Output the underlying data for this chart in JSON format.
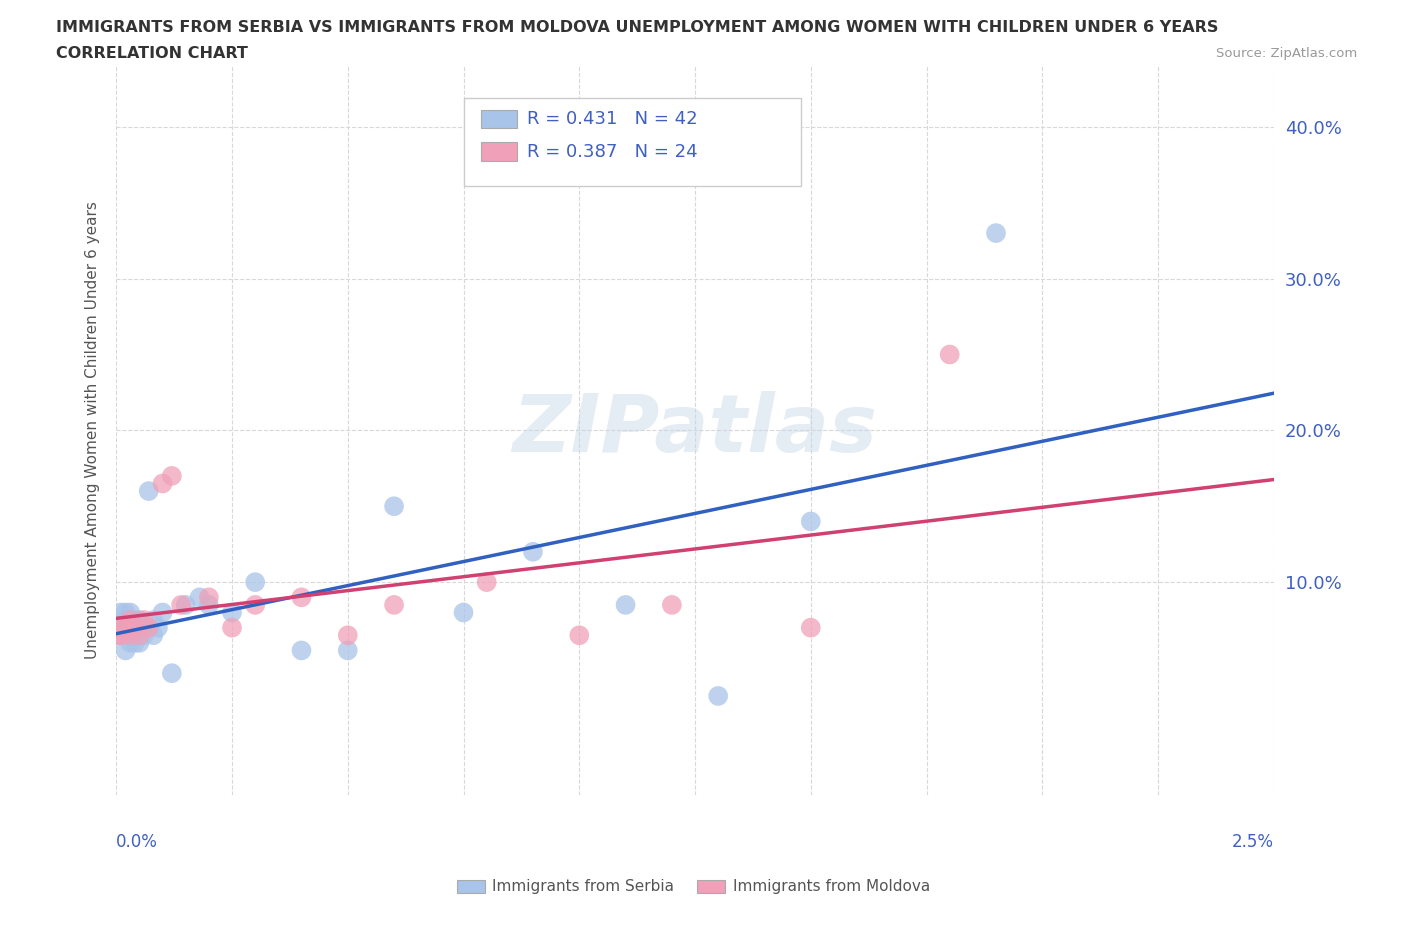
{
  "title": "IMMIGRANTS FROM SERBIA VS IMMIGRANTS FROM MOLDOVA UNEMPLOYMENT AMONG WOMEN WITH CHILDREN UNDER 6 YEARS",
  "subtitle": "CORRELATION CHART",
  "source": "Source: ZipAtlas.com",
  "ylabel": "Unemployment Among Women with Children Under 6 years",
  "serbia_R": 0.431,
  "serbia_N": 42,
  "moldova_R": 0.387,
  "moldova_N": 24,
  "serbia_color": "#a8c4e8",
  "moldova_color": "#f0a0b8",
  "serbia_line_color": "#3060c0",
  "moldova_line_color": "#d04070",
  "right_yticklabels": [
    "10.0%",
    "20.0%",
    "30.0%",
    "40.0%"
  ],
  "right_yticks": [
    0.1,
    0.2,
    0.3,
    0.4
  ],
  "watermark": "ZIPatlas",
  "serbia_x": [
    0.0001,
    0.0001,
    0.0001,
    0.0002,
    0.0002,
    0.0002,
    0.0002,
    0.0003,
    0.0003,
    0.0003,
    0.0003,
    0.0003,
    0.0004,
    0.0004,
    0.0004,
    0.0004,
    0.0005,
    0.0005,
    0.0005,
    0.0005,
    0.0006,
    0.0006,
    0.0007,
    0.0008,
    0.0008,
    0.0009,
    0.001,
    0.0012,
    0.0015,
    0.0018,
    0.002,
    0.0025,
    0.003,
    0.004,
    0.005,
    0.006,
    0.0075,
    0.009,
    0.011,
    0.013,
    0.015,
    0.019
  ],
  "serbia_y": [
    0.065,
    0.07,
    0.08,
    0.055,
    0.07,
    0.075,
    0.08,
    0.06,
    0.065,
    0.07,
    0.075,
    0.08,
    0.06,
    0.065,
    0.07,
    0.075,
    0.06,
    0.065,
    0.07,
    0.075,
    0.065,
    0.07,
    0.16,
    0.065,
    0.075,
    0.07,
    0.08,
    0.04,
    0.085,
    0.09,
    0.085,
    0.08,
    0.1,
    0.055,
    0.055,
    0.15,
    0.08,
    0.12,
    0.085,
    0.025,
    0.14,
    0.33
  ],
  "moldova_x": [
    5e-05,
    0.0001,
    0.0001,
    0.0002,
    0.0003,
    0.0003,
    0.0004,
    0.0005,
    0.0006,
    0.0007,
    0.001,
    0.0012,
    0.0014,
    0.002,
    0.0025,
    0.003,
    0.004,
    0.005,
    0.006,
    0.008,
    0.01,
    0.012,
    0.015,
    0.018
  ],
  "moldova_y": [
    0.065,
    0.065,
    0.07,
    0.07,
    0.065,
    0.075,
    0.07,
    0.065,
    0.075,
    0.07,
    0.165,
    0.17,
    0.085,
    0.09,
    0.07,
    0.085,
    0.09,
    0.065,
    0.085,
    0.1,
    0.065,
    0.085,
    0.07,
    0.25
  ],
  "xlim": [
    0.0,
    0.025
  ],
  "ylim": [
    -0.04,
    0.44
  ],
  "background_color": "#ffffff",
  "grid_color": "#d8d8d8",
  "title_color": "#333333",
  "tick_label_color": "#4060c0",
  "legend_box_color": "#e8eef8",
  "bottom_legend_serbia": "Immigrants from Serbia",
  "bottom_legend_moldova": "Immigrants from Moldova"
}
